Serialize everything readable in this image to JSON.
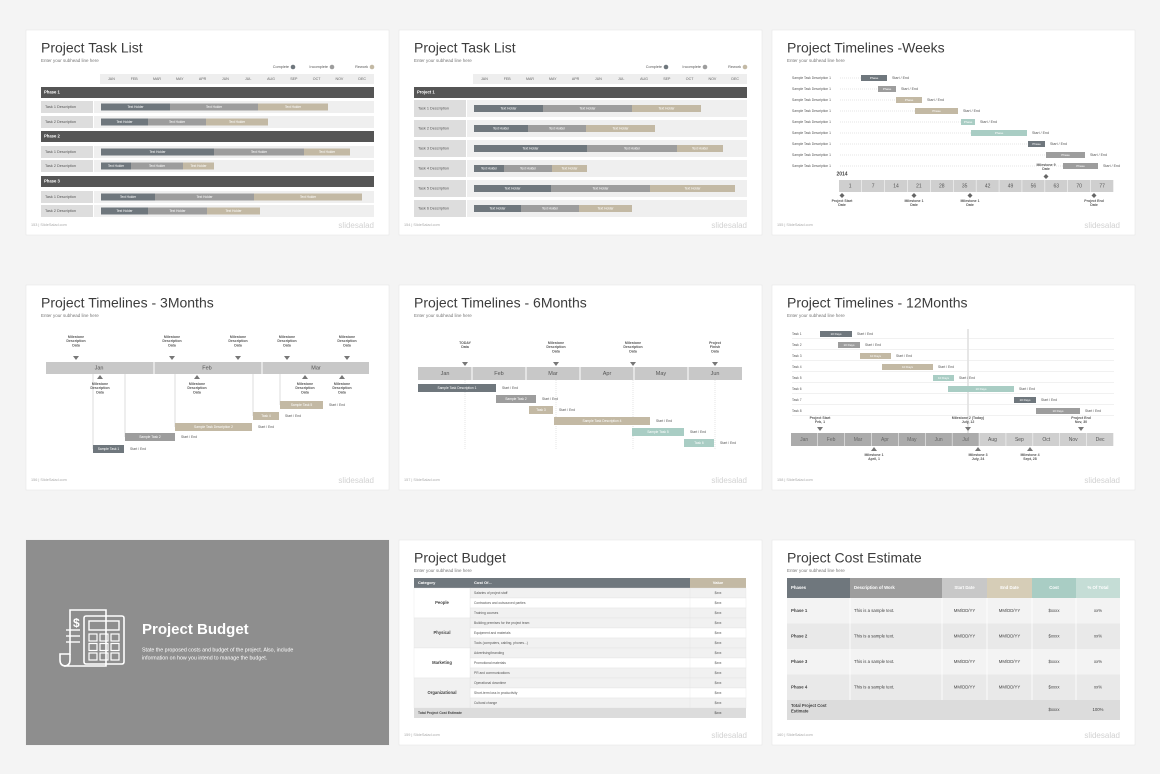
{
  "slides": [
    {
      "kind": "task-list",
      "title": "Project Task List",
      "subtitle": "Enter your subhead line here",
      "footer": "153 | SlideSalad.com",
      "brand": "slidesalad",
      "legend": [
        "Complete",
        "Incomplete",
        "Rework"
      ],
      "months": [
        "JAN",
        "FEB",
        "MAR",
        "MAY",
        "APR",
        "JUN",
        "JUL",
        "AUG",
        "SEP",
        "OCT",
        "NOV",
        "DEC"
      ],
      "rows": [
        {
          "label": "Phase 1",
          "phase": true
        },
        {
          "label": "Task 1 Description",
          "segments": [
            "Text Holder",
            "Text Holder",
            "Text Holder"
          ]
        },
        {
          "label": "Task 2 Description",
          "segments": [
            "Text Holder",
            "Text Holder",
            "Text Holder"
          ]
        },
        {
          "label": "Phase 2",
          "phase": true
        },
        {
          "label": "Task 1 Description",
          "segments": [
            "Text Holder",
            "Text Holder",
            "Text Holder"
          ]
        },
        {
          "label": "Task 2 Description",
          "segments": [
            "Text Holder",
            "Text Holder",
            "Text Holder"
          ]
        },
        {
          "label": "Phase 3",
          "phase": true
        },
        {
          "label": "Task 1 Description",
          "segments": [
            "Text Holder",
            "Text Holder",
            "Text Holder"
          ]
        },
        {
          "label": "Task 2 Description",
          "segments": [
            "Text Holder",
            "Text Holder",
            "Text Holder"
          ]
        }
      ]
    },
    {
      "kind": "task-list",
      "title": "Project Task List",
      "subtitle": "Enter your subhead line here",
      "footer": "154 | SlideSalad.com",
      "brand": "slidesalad",
      "legend": [
        "Complete",
        "Incomplete",
        "Rework"
      ],
      "months": [
        "JAN",
        "FEB",
        "MAR",
        "MAY",
        "APR",
        "JUN",
        "JUL",
        "AUG",
        "SEP",
        "OCT",
        "NOV",
        "DEC"
      ],
      "rows": [
        {
          "label": "Project 1",
          "phase": true
        },
        {
          "label": "Task 1 Description",
          "segments": [
            "Text Holder",
            "Text Holder",
            "Text Holder"
          ]
        },
        {
          "label": "Task 2 Description",
          "segments": [
            "Text Holder",
            "Text Holder",
            "Text Holder"
          ]
        },
        {
          "label": "Task 3 Description",
          "segments": [
            "Text Holder",
            "Text Holder",
            "Text Holder"
          ]
        },
        {
          "label": "Task 4 Description",
          "segments": [
            "Text Holder",
            "Text Holder",
            "Text Holder"
          ]
        },
        {
          "label": "Task 5 Description",
          "segments": [
            "Text Holder",
            "Text Holder",
            "Text Holder"
          ]
        },
        {
          "label": "Task 6 Description",
          "segments": [
            "Text Holder",
            "Text Holder",
            "Text Holder"
          ]
        }
      ]
    },
    {
      "kind": "weeks",
      "title": "Project Timelines -Weeks",
      "subtitle": "Enter your subhead line here",
      "footer": "155 | SlideSalad.com",
      "brand": "slidesalad",
      "rows": [
        {
          "label": "Sample Task Description 1",
          "bar": "Phase",
          "note": "Start / End"
        },
        {
          "label": "Sample Task Description 1",
          "bar": "Phase",
          "note": "Start / End"
        },
        {
          "label": "Sample Task Description 1",
          "bar": "Phase",
          "note": "Start / End"
        },
        {
          "label": "Sample Task Description 1",
          "bar": "Phase",
          "note": "Start / End"
        },
        {
          "label": "Sample Task Description 1",
          "bar": "Phase",
          "note": "Start / End"
        },
        {
          "label": "Sample Task Description 1",
          "bar": "Phase",
          "note": "Start / End"
        },
        {
          "label": "Sample Task Description 1",
          "bar": "Phase",
          "note": "Start / End"
        },
        {
          "label": "Sample Task Description 1",
          "bar": "Phase",
          "note": "Start / End"
        },
        {
          "label": "Sample Task Description 1",
          "bar": "Phase",
          "note": "Start / End"
        }
      ],
      "year": "2014",
      "weeks": [
        "1",
        "7",
        "14",
        "21",
        "28",
        "35",
        "42",
        "49",
        "56",
        "63",
        "70",
        "77"
      ],
      "above": [
        {
          "lines": [
            "Milestone 9",
            "Date"
          ]
        }
      ],
      "below": [
        {
          "lines": [
            "Project Start",
            "Date"
          ]
        },
        {
          "lines": [
            "Milestone 1",
            "Date"
          ]
        },
        {
          "lines": [
            "Milestone 1",
            "Date"
          ]
        },
        {
          "lines": [
            "Project End",
            "Date"
          ]
        }
      ]
    },
    {
      "kind": "months3",
      "title": "Project Timelines - 3Months",
      "subtitle": "Enter your subhead line here",
      "footer": "156 | SlideSalad.com",
      "brand": "slidesalad",
      "months": [
        "Jan",
        "Feb",
        "Mar"
      ],
      "above": [
        {
          "lines": [
            "Milestone",
            "Description",
            "Data"
          ]
        },
        {
          "lines": [
            "Milestone",
            "Description",
            "Data"
          ]
        },
        {
          "lines": [
            "Milestone",
            "Description",
            "Data"
          ]
        },
        {
          "lines": [
            "Milestone",
            "Description",
            "Data"
          ]
        },
        {
          "lines": [
            "Milestone",
            "Description",
            "Data"
          ]
        }
      ],
      "below": [
        {
          "lines": [
            "Milestone",
            "Description",
            "Data"
          ]
        },
        {
          "lines": [
            "Milestone",
            "Description",
            "Data"
          ]
        },
        {
          "lines": [
            "Milestone",
            "Description",
            "Data"
          ]
        },
        {
          "lines": [
            "Milestone",
            "Description",
            "Data"
          ]
        }
      ],
      "tasks": [
        {
          "label": "Sample Task 1",
          "note": "Start / End"
        },
        {
          "label": "Sample Task 2",
          "note": "Start / End"
        },
        {
          "label": "Sample Task Description 2",
          "note": "Start / End"
        },
        {
          "label": "Task 4",
          "note": "Start / End"
        },
        {
          "label": "Sample Task 5",
          "note": "Start / End"
        }
      ]
    },
    {
      "kind": "months6",
      "title": "Project Timelines - 6Months",
      "subtitle": "Enter your subhead line here",
      "footer": "157 | SlideSalad.com",
      "brand": "slidesalad",
      "months": [
        "Jan",
        "Feb",
        "Mar",
        "Apr",
        "May",
        "Jun"
      ],
      "above": [
        {
          "lines": [
            "TODAY",
            "Data"
          ]
        },
        {
          "lines": [
            "Milestone",
            "Description",
            "Data"
          ]
        },
        {
          "lines": [
            "Milestone",
            "Description",
            "Data"
          ]
        },
        {
          "lines": [
            "Project",
            "Finish",
            "Data"
          ]
        }
      ],
      "tasks": [
        {
          "label": "Sample Task Description 1",
          "note": "Start / End"
        },
        {
          "label": "Sample Task 2",
          "note": "Start / End"
        },
        {
          "label": "Task 3",
          "note": "Start / End"
        },
        {
          "label": "Sample Task Description 4",
          "note": "Start / End"
        },
        {
          "label": "Sample Task 5",
          "note": "Start / End"
        },
        {
          "label": "Task 6",
          "note": "Start / End"
        }
      ]
    },
    {
      "kind": "year",
      "title": "Project Timelines - 12Months",
      "subtitle": "Enter your subhead line here",
      "footer": "158 | SlideSalad.com",
      "brand": "slidesalad",
      "rows": [
        {
          "label": "Task 1",
          "bar": "10 Days",
          "note": "Start / End"
        },
        {
          "label": "Task 2",
          "bar": "10 Days",
          "note": "Start / End"
        },
        {
          "label": "Task 3",
          "bar": "10 Days",
          "note": "Start / End"
        },
        {
          "label": "Task 4",
          "bar": "10 Days",
          "note": "Start / End"
        },
        {
          "label": "Task 5",
          "bar": "10 Days",
          "note": "Start / End"
        },
        {
          "label": "Task 6",
          "bar": "10 Days",
          "note": "Start / End"
        },
        {
          "label": "Task 7",
          "bar": "10 Days",
          "note": "Start / End"
        },
        {
          "label": "Task 8",
          "bar": "10 Days",
          "note": "Start / End"
        }
      ],
      "months": [
        "Jan",
        "Feb",
        "Mar",
        "Apr",
        "May",
        "Jun",
        "Jul",
        "Aug",
        "Sep",
        "Oct",
        "Nov",
        "Dec"
      ],
      "above": [
        {
          "lines": [
            "Project Start",
            "Feb, 1"
          ]
        },
        {
          "lines": [
            "Milestone 2 (Today)",
            "July, 12"
          ]
        },
        {
          "lines": [
            "Project End",
            "Nov, 30"
          ]
        }
      ],
      "below": [
        {
          "lines": [
            "Milestone 1",
            "April, 1"
          ]
        },
        {
          "lines": [
            "Milestone 3",
            "July, 24"
          ]
        },
        {
          "lines": [
            "Milestone 4",
            "Sept, 28"
          ]
        }
      ]
    },
    {
      "kind": "section",
      "title": "Project Budget",
      "lines": [
        "State the proposed costs and budget of the project. Also, include",
        "information on how you intend to manage the budget."
      ]
    },
    {
      "kind": "budget",
      "title": "Project Budget",
      "subtitle": "Enter your subhead line here",
      "footer": "159 | SlideSalad.com",
      "brand": "slidesalad",
      "header": [
        "Category",
        "Cost Of...",
        "Value"
      ],
      "groups": [
        {
          "category": "People",
          "items": [
            {
              "item": "Salaries of project staff",
              "value": "$xxx"
            },
            {
              "item": "Contractors and outsourced parties",
              "value": "$xxx"
            },
            {
              "item": "Training courses",
              "value": "$xxx"
            }
          ]
        },
        {
          "category": "Physical",
          "items": [
            {
              "item": "Building premises for the project team",
              "value": "$xxx"
            },
            {
              "item": "Equipment and materials",
              "value": "$xxx"
            },
            {
              "item": "Tools (computers, cabling, phones...)",
              "value": "$xxx"
            }
          ]
        },
        {
          "category": "Marketing",
          "items": [
            {
              "item": "Advertising/branding",
              "value": "$xxx"
            },
            {
              "item": "Promotional materials",
              "value": "$xxx"
            },
            {
              "item": "PR and communications",
              "value": "$xxx"
            }
          ]
        },
        {
          "category": "Organizational",
          "items": [
            {
              "item": "Operational downtime",
              "value": "$xxx"
            },
            {
              "item": "Short-term loss in productivity",
              "value": "$xxx"
            },
            {
              "item": "Cultural change",
              "value": "$xxx"
            }
          ]
        }
      ],
      "total": {
        "label": "Total Project Cost Estimate",
        "value": "$xxx"
      }
    },
    {
      "kind": "estimate",
      "title": "Project Cost Estimate",
      "subtitle": "Enter your subhead line here",
      "footer": "160 | SlideSalad.com",
      "brand": "slidesalad",
      "header": [
        "Phases",
        "Description of Work",
        "Start Date",
        "End Date",
        "Cost",
        "% Of Total"
      ],
      "rows": [
        [
          "Phase 1",
          "This is a sample text.",
          "MM/DD/YY",
          "MM/DD/YY",
          "$xxxx",
          "xx%"
        ],
        [
          "Phase 2",
          "This is a sample text.",
          "MM/DD/YY",
          "MM/DD/YY",
          "$xxxx",
          "xx%"
        ],
        [
          "Phase 3",
          "This is a sample text.",
          "MM/DD/YY",
          "MM/DD/YY",
          "$xxxx",
          "xx%"
        ],
        [
          "Phase 4",
          "This is a sample text.",
          "MM/DD/YY",
          "MM/DD/YY",
          "$xxxx",
          "xx%"
        ]
      ],
      "total": {
        "label": [
          "Total Project Cost",
          "Estimate"
        ],
        "cost": "$xxxx",
        "percent": "100%"
      }
    }
  ]
}
